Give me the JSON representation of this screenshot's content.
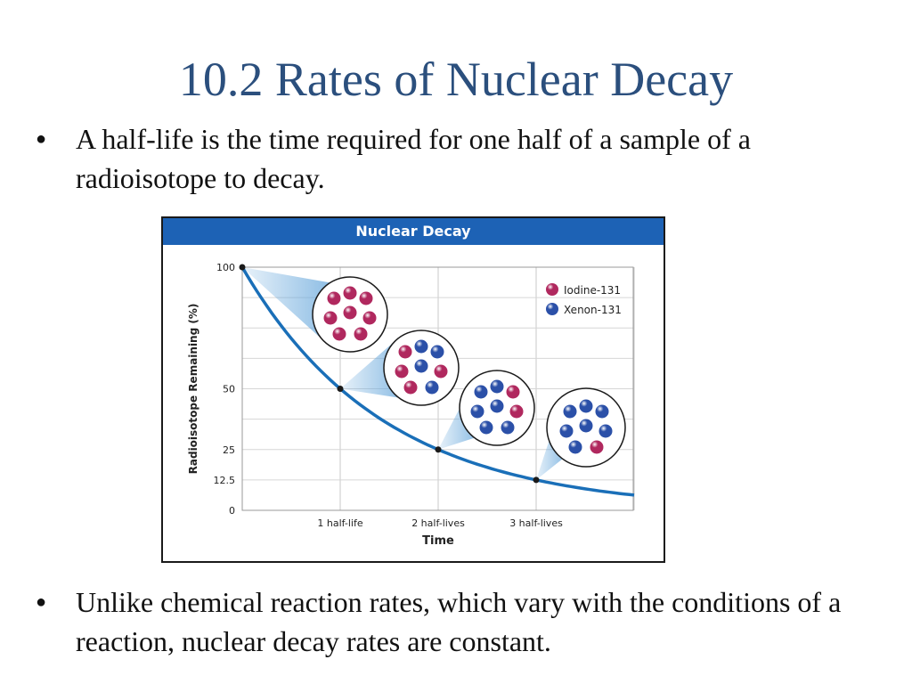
{
  "slide": {
    "title": "10.2 Rates of Nuclear Decay",
    "bullet_symbol": "●",
    "bullets": [
      "A half-life is the time required for one half of a sample of a radioisotope to decay.",
      "Unlike chemical reaction rates, which vary with the conditions of a reaction, nuclear decay rates are constant."
    ]
  },
  "colors": {
    "title": "#2b4f7d",
    "header": "#1d62b5",
    "curve": "#1a6fb8",
    "iodine": "#b0285e",
    "xenon": "#2b50a8",
    "wedge": "#6aa9dc"
  },
  "chart_data": {
    "type": "line",
    "title": "Nuclear Decay",
    "xlabel": "Time",
    "ylabel": "Radioisotope Remaining (%)",
    "y_ticks": [
      0,
      12.5,
      25,
      50,
      100
    ],
    "x_tick_labels": [
      "1 half-life",
      "2 half-lives",
      "3 half-lives"
    ],
    "x_ticks": [
      1,
      2,
      3
    ],
    "xlim": [
      0,
      4
    ],
    "ylim": [
      0,
      100
    ],
    "grid": true,
    "legend_position": "top-right",
    "legend": [
      {
        "name": "Iodine-131",
        "color_key": "iodine"
      },
      {
        "name": "Xenon-131",
        "color_key": "xenon"
      }
    ],
    "series": [
      {
        "name": "Iodine-131",
        "x": [
          0,
          1,
          2,
          3,
          4
        ],
        "y": [
          100,
          50,
          25,
          12.5,
          6.25
        ]
      }
    ],
    "marked_points": [
      {
        "x": 0,
        "y": 100
      },
      {
        "x": 1,
        "y": 50
      },
      {
        "x": 2,
        "y": 25
      },
      {
        "x": 3,
        "y": 12.5
      }
    ],
    "samples": [
      {
        "at_half_lives": 0,
        "iodine": 8,
        "xenon": 0
      },
      {
        "at_half_lives": 1,
        "iodine": 4,
        "xenon": 4
      },
      {
        "at_half_lives": 2,
        "iodine": 2,
        "xenon": 6
      },
      {
        "at_half_lives": 3,
        "iodine": 1,
        "xenon": 7
      }
    ]
  }
}
